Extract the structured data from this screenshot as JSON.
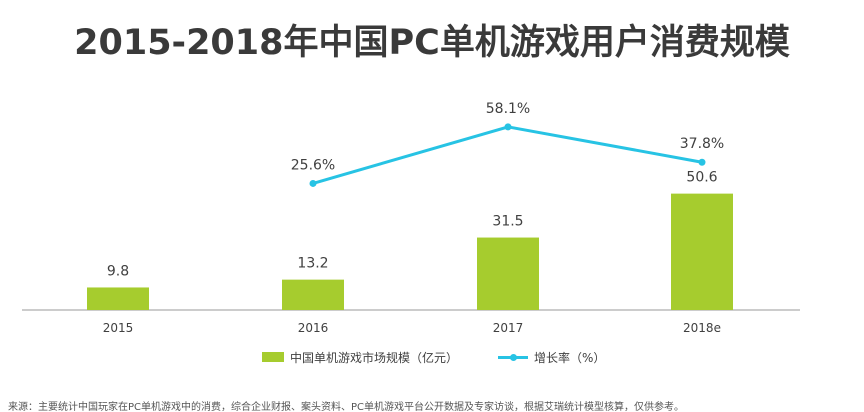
{
  "title": "2015-2018年中国PC单机游戏用户消费规模",
  "colors": {
    "bar": "#a6cc2e",
    "line": "#27c3e4",
    "axis": "#999999",
    "text": "#404040"
  },
  "chart_data": {
    "type": "bar+line",
    "categories": [
      "2015",
      "2016",
      "2017",
      "2018e"
    ],
    "series": [
      {
        "name": "中国单机游戏市场规模（亿元）",
        "type": "bar",
        "values": [
          9.8,
          13.2,
          31.5,
          50.6
        ],
        "labels": [
          "9.8",
          "13.2",
          "31.5",
          "50.6"
        ]
      },
      {
        "name": "增长率（%）",
        "type": "line",
        "values": [
          null,
          25.6,
          58.1,
          37.8
        ],
        "labels": [
          "",
          "25.6%",
          "58.1%",
          "37.8%"
        ]
      }
    ],
    "legend_position": "bottom",
    "grid": false
  },
  "source_text": "来源：主要统计中国玩家在PC单机游戏中的消费，综合企业财报、案头资料、PC单机游戏平台公开数据及专家访谈，根据艾瑞统计模型核算，仅供参考。"
}
